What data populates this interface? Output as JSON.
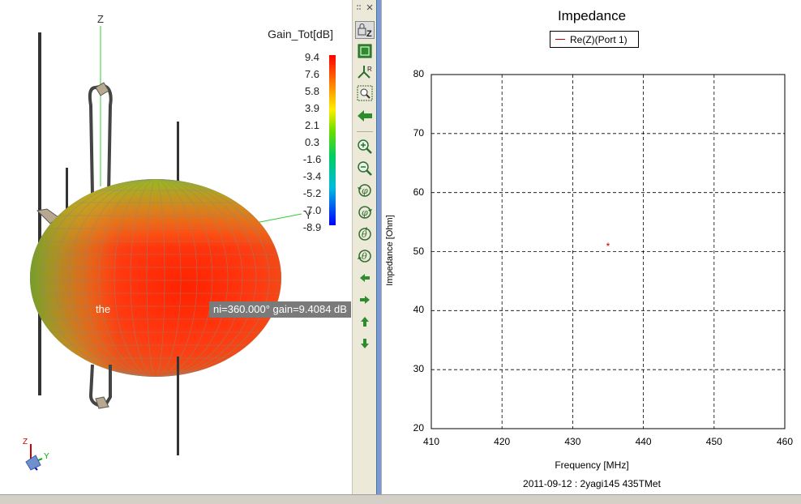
{
  "view3d": {
    "axis_z_label": "Z",
    "axis_y_label": "Y",
    "colorbar": {
      "title": "Gain_Tot[dB]",
      "labels": [
        "9.4",
        "7.6",
        "5.8",
        "3.9",
        "2.1",
        "0.3",
        "-1.6",
        "-3.4",
        "-5.2",
        "-7.0",
        "-8.9"
      ],
      "colors": [
        "#ff0000",
        "#ff8800",
        "#ffee00",
        "#66dd00",
        "#00cc66",
        "#00bbdd",
        "#0000ff"
      ]
    },
    "ghost_text": "the",
    "tooltip": "ni=360.000° gain=9.4084 dB",
    "triad": {
      "z": "Z",
      "y": "Y",
      "x": "X"
    }
  },
  "toolbar": {
    "items": [
      "lock-z",
      "fit-view",
      "axis-reset",
      "zoom-box",
      "back",
      "zoom-in",
      "zoom-out",
      "rotate-phi-ccw",
      "rotate-phi-cw",
      "rotate-theta-ccw",
      "rotate-theta-cw",
      "pan-left",
      "pan-right",
      "pan-up",
      "pan-down"
    ]
  },
  "chart_data": {
    "type": "scatter",
    "title": "Impedance",
    "xlabel": "Frequency [MHz]",
    "ylabel": "Impedance [Ohm]",
    "xlim": [
      410,
      460
    ],
    "ylim": [
      20,
      80
    ],
    "x_ticks": [
      410,
      420,
      430,
      440,
      450,
      460
    ],
    "y_ticks": [
      20,
      30,
      40,
      50,
      60,
      70,
      80
    ],
    "grid": true,
    "legend_position": "top-center",
    "series": [
      {
        "name": "Re(Z)(Port 1)",
        "color": "#c00000",
        "points": [
          {
            "x": 435,
            "y": 51
          }
        ]
      }
    ],
    "footer": "2011-09-12 : 2yagi145 435TMet"
  }
}
